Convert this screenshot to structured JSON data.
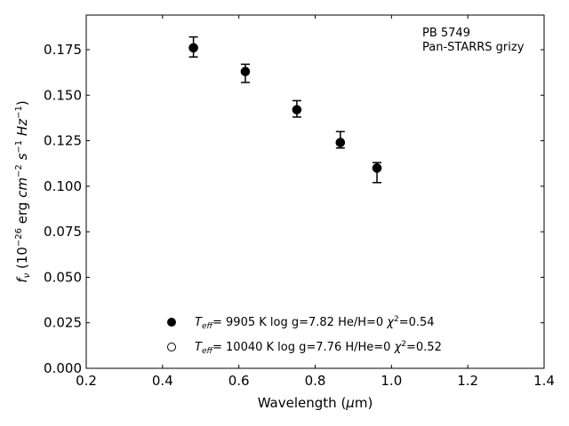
{
  "chart_data": {
    "type": "scatter",
    "title": "",
    "xlabel": "Wavelength (μm)",
    "ylabel": "fν (10⁻²⁶ erg cm⁻² s⁻¹ Hz⁻¹)",
    "xlim": [
      0.2,
      1.4
    ],
    "ylim": [
      0.0,
      0.194
    ],
    "xticks": [
      "0.2",
      "0.4",
      "0.6",
      "0.8",
      "1.0",
      "1.2",
      "1.4"
    ],
    "yticks": [
      "0.000",
      "0.025",
      "0.050",
      "0.075",
      "0.100",
      "0.125",
      "0.150",
      "0.175"
    ],
    "grid": false,
    "annotation": [
      "PB 5749",
      "Pan-STARRS grizy"
    ],
    "series": [
      {
        "name": "T_eff= 9905 K log g=7.82 He/H=0 χ²=0.54",
        "marker": "filled-circle",
        "color": "#000000",
        "x": [
          0.481,
          0.617,
          0.752,
          0.866,
          0.962
        ],
        "y": [
          0.176,
          0.163,
          0.142,
          0.124,
          0.11
        ],
        "yerr_low": [
          0.005,
          0.006,
          0.004,
          0.003,
          0.008
        ],
        "yerr_high": [
          0.006,
          0.004,
          0.005,
          0.006,
          0.003
        ]
      },
      {
        "name": "T_eff= 10040 K log g=7.76 H/He=0 χ²=0.52",
        "marker": "open-circle",
        "color": "#000000",
        "x": [
          0.481,
          0.617,
          0.752,
          0.866,
          0.962
        ],
        "y": [
          0.176,
          0.163,
          0.142,
          0.124,
          0.11
        ]
      }
    ],
    "legend_placement": "lower-center"
  }
}
